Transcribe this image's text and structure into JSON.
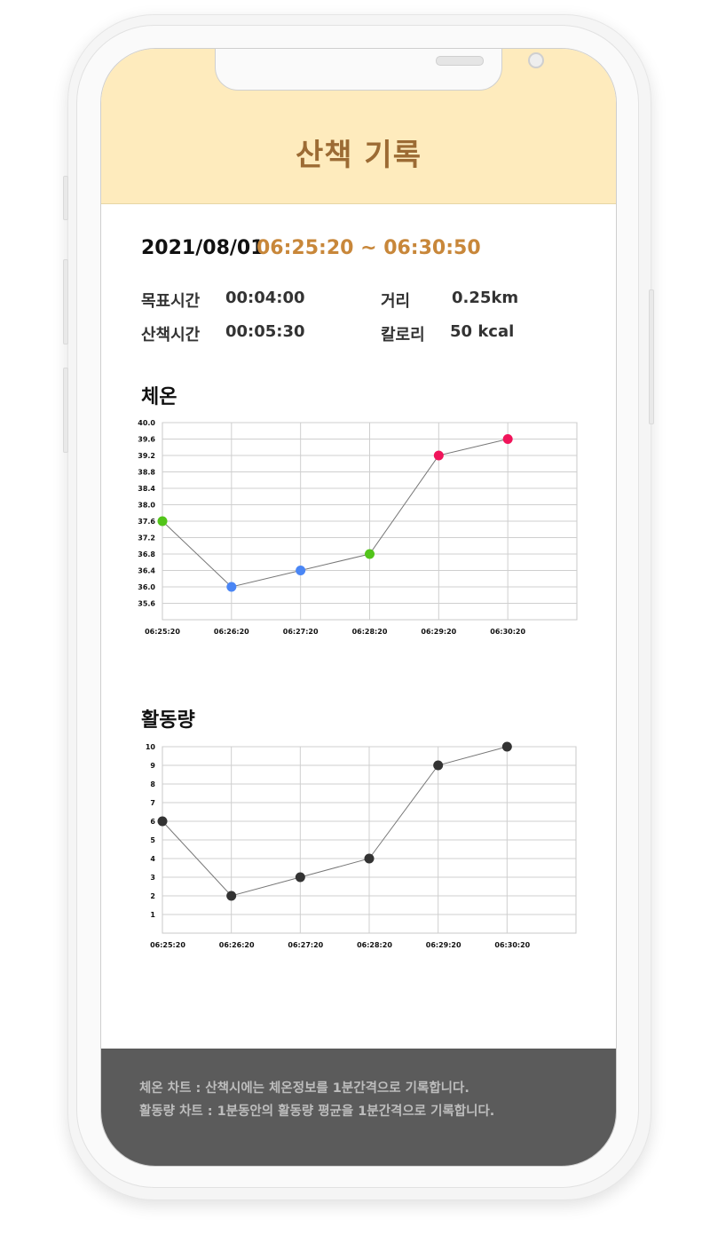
{
  "header": {
    "title": "산책 기록"
  },
  "record": {
    "date": "2021/08/01",
    "time_range": "06:25:20 ~ 06:30:50",
    "goal_label": "목표시간",
    "goal_value": "00:04:00",
    "walk_label": "산책시간",
    "walk_value": "00:05:30",
    "distance_label": "거리",
    "distance_value": "0.25km",
    "calorie_label": "칼로리",
    "calorie_value": "50 kcal"
  },
  "sections": {
    "temperature_title": "체온",
    "activity_title": "활동량"
  },
  "footer": {
    "line1": "체온 차트 : 산책시에는 체온정보를 1분간격으로 기록합니다.",
    "line2": "활동량 차트 : 1분동안의 활동량 평균을 1분간격으로 기록합니다."
  },
  "chart_data": [
    {
      "type": "line",
      "title": "",
      "x": [
        "06:25:20",
        "06:26:20",
        "06:27:20",
        "06:28:20",
        "06:29:20",
        "06:30:20"
      ],
      "x_extent": [
        "06:25:20",
        "06:31:20"
      ],
      "yticks": [
        "40.0",
        "39.6",
        "39.2",
        "38.8",
        "38.4",
        "38.0",
        "37.6",
        "37.2",
        "36.8",
        "36.4",
        "36.0",
        "35.6"
      ],
      "ylim": [
        35.2,
        40.0
      ],
      "grid": true,
      "series": [
        {
          "values": [
            37.6,
            36.0,
            36.4,
            36.8,
            39.2,
            39.6
          ],
          "point_colors": [
            "#52c41a",
            "#4a86f5",
            "#4a86f5",
            "#52c41a",
            "#f0145a",
            "#f0145a"
          ]
        }
      ],
      "line_color": "#777777"
    },
    {
      "type": "line",
      "title": "",
      "x": [
        "06:25:20",
        "06:26:20",
        "06:27:20",
        "06:28:20",
        "06:29:20",
        "06:30:20"
      ],
      "x_extent": [
        "06:25:20",
        "06:31:20"
      ],
      "yticks": [
        "10",
        "9",
        "8",
        "7",
        "6",
        "5",
        "4",
        "3",
        "2",
        "1"
      ],
      "ylim": [
        0,
        10
      ],
      "grid": true,
      "series": [
        {
          "values": [
            6,
            2,
            3,
            4,
            9,
            10
          ],
          "point_colors": [
            "#333333",
            "#333333",
            "#333333",
            "#333333",
            "#333333",
            "#333333"
          ]
        }
      ],
      "line_color": "#777777"
    }
  ]
}
